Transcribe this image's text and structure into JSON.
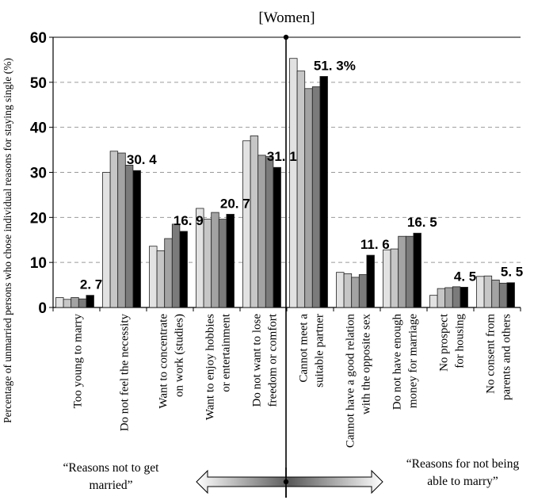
{
  "chart_data": {
    "type": "bar",
    "title": "[Women]",
    "ylabel": "Percentage of unmarried persons who chose individual reasons for staying single (%)",
    "xlabel": "",
    "ylim": [
      0,
      60
    ],
    "yticks": [
      0,
      10,
      20,
      30,
      40,
      50,
      60
    ],
    "grid": true,
    "categories": [
      [
        "Too young to marry"
      ],
      [
        "Do not feel the necessity"
      ],
      [
        "Want to concentrate",
        "on work (studies)"
      ],
      [
        "Want to enjoy hobbies",
        "or entertainment"
      ],
      [
        "Do not want to lose",
        "freedom or comfort"
      ],
      [
        "Cannot meet a",
        "suitable partner"
      ],
      [
        "Cannot have a good relation",
        "with the opposite sex"
      ],
      [
        "Do not have enough",
        "money for marriage"
      ],
      [
        "No prospect",
        "for housing"
      ],
      [
        "No consent from",
        "parents and others"
      ]
    ],
    "series": [
      {
        "values": [
          2.2,
          30.0,
          13.6,
          22.0,
          37.0,
          55.3,
          7.8,
          12.8,
          2.7,
          6.9
        ]
      },
      {
        "values": [
          1.8,
          34.7,
          12.6,
          19.6,
          38.1,
          52.5,
          7.5,
          13.0,
          4.2,
          7.0
        ]
      },
      {
        "values": [
          2.2,
          34.3,
          15.3,
          21.1,
          33.8,
          48.6,
          6.7,
          15.8,
          4.4,
          6.1
        ]
      },
      {
        "values": [
          1.9,
          31.6,
          18.5,
          19.6,
          33.5,
          49.0,
          7.3,
          15.8,
          4.6,
          5.4
        ]
      },
      {
        "values": [
          2.7,
          30.4,
          16.9,
          20.7,
          31.1,
          51.3,
          11.6,
          16.5,
          4.5,
          5.5
        ]
      }
    ],
    "series_colors": [
      "#e2e2e2",
      "#c6c6c6",
      "#a3a3a3",
      "#7b7b7b",
      "#000000"
    ],
    "value_labels": [
      "2. 7",
      "30. 4",
      "16. 9",
      "20. 7",
      "31. 1",
      "51. 3%",
      "11. 6",
      "16. 5",
      "4. 5",
      "5. 5"
    ],
    "annotations": {
      "left": "“Reasons not to get married”",
      "right": "“Reasons for not being able to marry”"
    }
  }
}
